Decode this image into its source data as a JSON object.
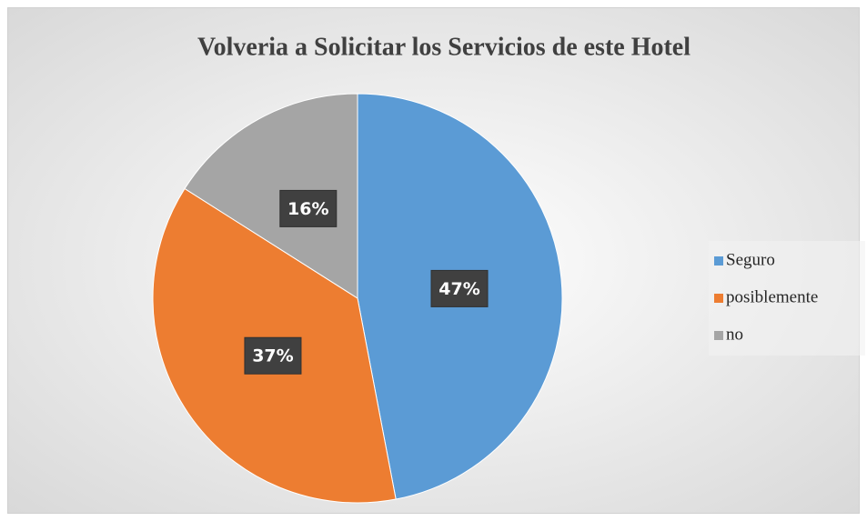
{
  "chart_data": {
    "type": "pie",
    "title": "Volveria a Solicitar los Servicios de este Hotel",
    "categories": [
      "Seguro",
      "posiblemente",
      "no"
    ],
    "values": [
      47,
      37,
      16
    ],
    "value_labels": [
      "47%",
      "37%",
      "16%"
    ],
    "colors": [
      "#5b9bd5",
      "#ed7d31",
      "#a5a5a5"
    ],
    "legend": "right"
  }
}
